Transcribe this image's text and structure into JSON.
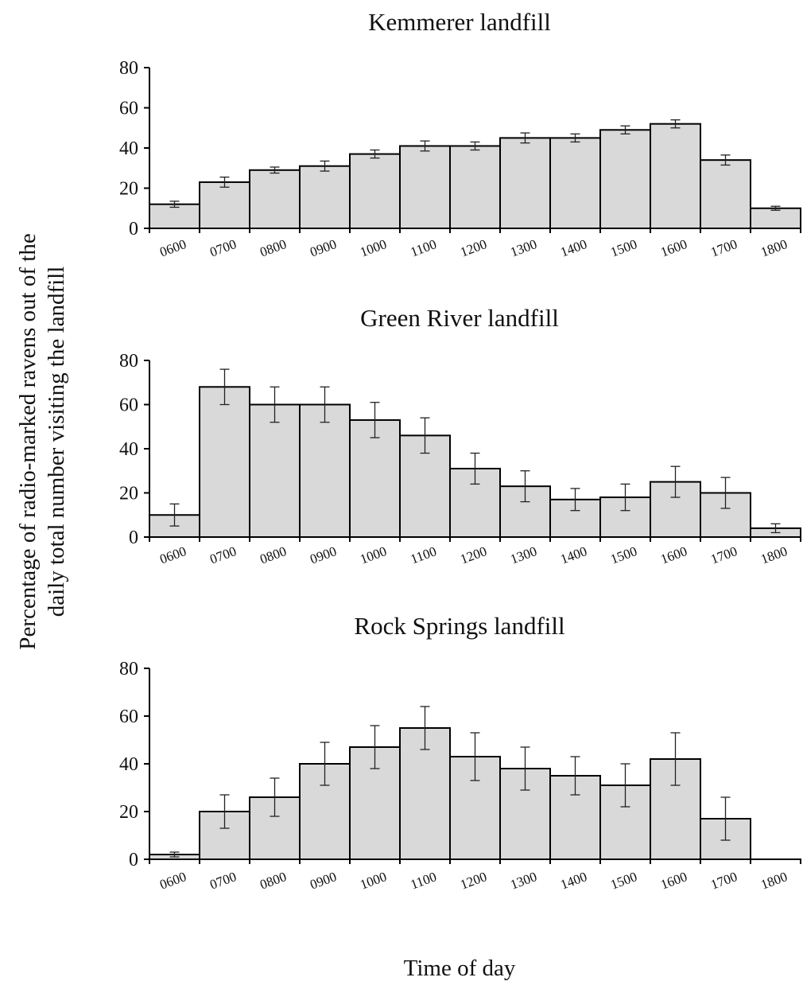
{
  "figure": {
    "ylabel_line1": "Percentage of radio-marked ravens out of the",
    "ylabel_line2": "daily total number visiting the landfill",
    "xlabel": "Time of day"
  },
  "style": {
    "bar_fill": "#d9d9d9",
    "bar_stroke": "#000000",
    "axis_color": "#000000"
  },
  "chart_data": [
    {
      "type": "bar",
      "title": "Kemmerer landfill",
      "ylim": [
        0,
        80
      ],
      "yticks": [
        0,
        20,
        40,
        60,
        80
      ],
      "categories": [
        "0600",
        "0700",
        "0800",
        "0900",
        "1000",
        "1100",
        "1200",
        "1300",
        "1400",
        "1500",
        "1600",
        "1700",
        "1800"
      ],
      "values": [
        12,
        23,
        29,
        31,
        37,
        41,
        41,
        45,
        45,
        49,
        52,
        34,
        10
      ],
      "errors": [
        1.5,
        2.5,
        1.5,
        2.5,
        2,
        2.5,
        2,
        2.5,
        2,
        2,
        2,
        2.5,
        1
      ],
      "grid": false
    },
    {
      "type": "bar",
      "title": "Green River landfill",
      "ylim": [
        0,
        80
      ],
      "yticks": [
        0,
        20,
        40,
        60,
        80
      ],
      "categories": [
        "0600",
        "0700",
        "0800",
        "0900",
        "1000",
        "1100",
        "1200",
        "1300",
        "1400",
        "1500",
        "1600",
        "1700",
        "1800"
      ],
      "values": [
        10,
        68,
        60,
        60,
        53,
        46,
        31,
        23,
        17,
        18,
        25,
        20,
        4
      ],
      "errors": [
        5,
        8,
        8,
        8,
        8,
        8,
        7,
        7,
        5,
        6,
        7,
        7,
        2
      ],
      "grid": false
    },
    {
      "type": "bar",
      "title": "Rock Springs landfill",
      "ylim": [
        0,
        80
      ],
      "yticks": [
        0,
        20,
        40,
        60,
        80
      ],
      "categories": [
        "0600",
        "0700",
        "0800",
        "0900",
        "1000",
        "1100",
        "1200",
        "1300",
        "1400",
        "1500",
        "1600",
        "1700",
        "1800"
      ],
      "values": [
        2,
        20,
        26,
        40,
        47,
        55,
        43,
        38,
        35,
        31,
        42,
        17,
        null
      ],
      "errors": [
        1,
        7,
        8,
        9,
        9,
        9,
        10,
        9,
        8,
        9,
        11,
        9,
        null
      ],
      "grid": false
    }
  ]
}
